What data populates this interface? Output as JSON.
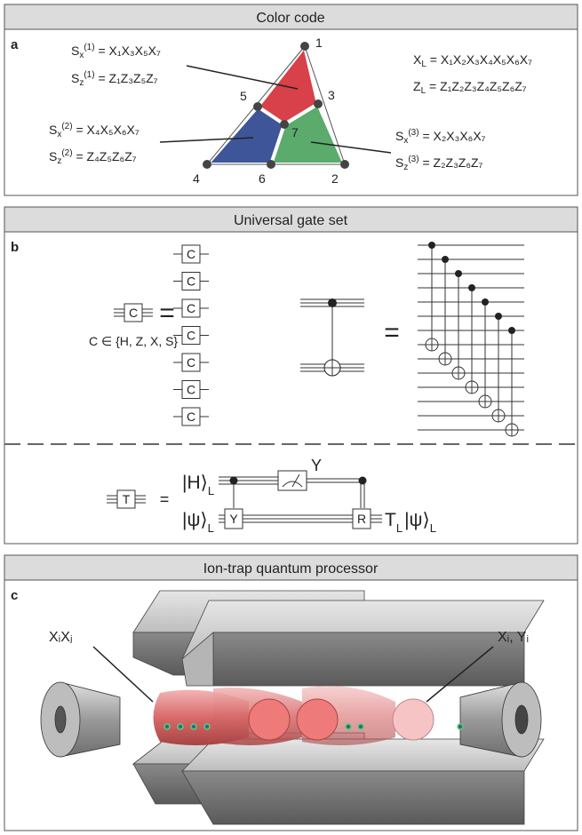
{
  "panel_a": {
    "header": "Color code",
    "label": "a",
    "vertices": [
      "1",
      "2",
      "3",
      "4",
      "5",
      "6",
      "7"
    ],
    "stabilizers": [
      {
        "x": {
          "op": "S",
          "sub": "x",
          "sup": "(1)",
          "eq": " = X₁X₃X₅X₇"
        },
        "z": {
          "op": "S",
          "sub": "z",
          "sup": "(1)",
          "eq": " = Z₁Z₃Z₅Z₇"
        }
      },
      {
        "x": {
          "op": "S",
          "sub": "x",
          "sup": "(2)",
          "eq": " = X₄X₅X₆X₇"
        },
        "z": {
          "op": "S",
          "sub": "z",
          "sup": "(2)",
          "eq": " = Z₄Z₅Z₆Z₇"
        }
      },
      {
        "x": {
          "op": "S",
          "sub": "x",
          "sup": "(3)",
          "eq": " = X₂X₃X₆X₇"
        },
        "z": {
          "op": "S",
          "sub": "z",
          "sup": "(3)",
          "eq": " = Z₂Z₃Z₆Z₇"
        }
      }
    ],
    "logical": {
      "x": {
        "op": "X",
        "sub": "L",
        "eq": " = X₁X₂X₃X₄X₅X₆X₇"
      },
      "z": {
        "op": "Z",
        "sub": "L",
        "eq": " = Z₁Z₂Z₃Z₄Z₅Z₆Z₇"
      }
    }
  },
  "panel_b": {
    "header": "Universal gate set",
    "label": "b",
    "gate": "C",
    "gate_set": "C ∈ {H, Z, X, S}",
    "column_gates": [
      "C",
      "C",
      "C",
      "C",
      "C",
      "C",
      "C"
    ],
    "equals": "=",
    "t_circuit": {
      "gate": "T",
      "ancilla": {
        "ket": "|H⟩",
        "sub": "L"
      },
      "outcome": "Y",
      "controlled_gate": "Y",
      "correction": "R",
      "input": {
        "ket": "|ψ⟩",
        "sub": "L"
      },
      "output": {
        "op": "T",
        "sub": "L",
        "ket": "|ψ⟩",
        "ket_sub": "L"
      }
    }
  },
  "panel_c": {
    "header": "Ion-trap quantum processor",
    "label": "c",
    "pair_label": "XᵢXⱼ",
    "single_label": "Xᵢ, Yᵢ"
  }
}
